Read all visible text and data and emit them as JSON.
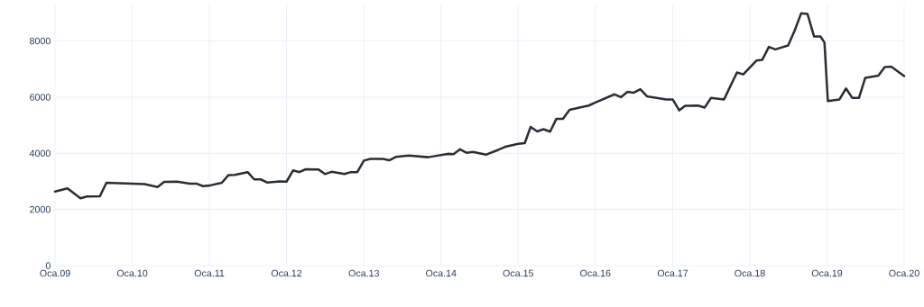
{
  "chart_data": {
    "type": "line",
    "grid": true,
    "line_style": "solid",
    "xlim": [
      "2009-01",
      "2020-01"
    ],
    "ylim": [
      0,
      9300
    ],
    "xticks": [
      {
        "value": "2009-01",
        "label": "Oca.09"
      },
      {
        "value": "2010-01",
        "label": "Oca.10"
      },
      {
        "value": "2011-01",
        "label": "Oca.11"
      },
      {
        "value": "2012-01",
        "label": "Oca.12"
      },
      {
        "value": "2013-01",
        "label": "Oca.13"
      },
      {
        "value": "2014-01",
        "label": "Oca.14"
      },
      {
        "value": "2015-01",
        "label": "Oca.15"
      },
      {
        "value": "2016-01",
        "label": "Oca.16"
      },
      {
        "value": "2017-01",
        "label": "Oca.17"
      },
      {
        "value": "2018-01",
        "label": "Oca.18"
      },
      {
        "value": "2019-01",
        "label": "Oca.19"
      },
      {
        "value": "2020-01",
        "label": "Oca.20"
      }
    ],
    "yticks": [
      0,
      2000,
      4000,
      6000,
      8000
    ],
    "x": [
      "2009-01",
      "2009-03",
      "2009-05",
      "2009-06",
      "2009-08",
      "2009-09",
      "2010-01",
      "2010-03",
      "2010-05",
      "2010-06",
      "2010-08",
      "2010-10",
      "2010-11",
      "2010-12",
      "2011-01",
      "2011-03",
      "2011-04",
      "2011-05",
      "2011-07",
      "2011-08",
      "2011-09",
      "2011-10",
      "2011-12",
      "2012-01",
      "2012-02",
      "2012-03",
      "2012-04",
      "2012-06",
      "2012-07",
      "2012-08",
      "2012-10",
      "2012-11",
      "2012-12",
      "2013-01",
      "2013-02",
      "2013-04",
      "2013-05",
      "2013-06",
      "2013-08",
      "2013-11",
      "2014-02",
      "2014-03",
      "2014-04",
      "2014-05",
      "2014-06",
      "2014-08",
      "2014-10",
      "2014-11",
      "2015-01",
      "2015-02",
      "2015-03",
      "2015-04",
      "2015-05",
      "2015-06",
      "2015-07",
      "2015-08",
      "2015-09",
      "2015-11",
      "2015-12",
      "2016-01",
      "2016-04",
      "2016-05",
      "2016-06",
      "2016-07",
      "2016-08",
      "2016-09",
      "2016-12",
      "2017-01",
      "2017-02",
      "2017-03",
      "2017-05",
      "2017-06",
      "2017-07",
      "2017-09",
      "2017-11",
      "2017-12",
      "2018-02",
      "2018-03",
      "2018-04",
      "2018-05",
      "2018-07",
      "2018-08",
      "2018-09",
      "2018-10",
      "2018-11",
      "2018-12-01",
      "2018-12-20",
      "2019-01-05",
      "2019-03",
      "2019-04",
      "2019-05",
      "2019-06",
      "2019-07",
      "2019-09",
      "2019-10",
      "2019-11",
      "2020-01"
    ],
    "series": [
      {
        "color": "#2a2f36",
        "values": [
          2640,
          2750,
          2400,
          2460,
          2470,
          2950,
          2920,
          2900,
          2800,
          2980,
          2990,
          2920,
          2920,
          2830,
          2850,
          2950,
          3220,
          3230,
          3330,
          3070,
          3070,
          2960,
          3000,
          2990,
          3390,
          3330,
          3430,
          3420,
          3260,
          3340,
          3260,
          3330,
          3330,
          3740,
          3800,
          3800,
          3750,
          3870,
          3920,
          3860,
          3980,
          3970,
          4140,
          4020,
          4050,
          3950,
          4130,
          4230,
          4340,
          4360,
          4940,
          4780,
          4860,
          4770,
          5230,
          5230,
          5550,
          5650,
          5700,
          5810,
          6100,
          6000,
          6190,
          6160,
          6280,
          6030,
          5920,
          5920,
          5530,
          5690,
          5700,
          5630,
          5970,
          5920,
          6880,
          6810,
          7300,
          7330,
          7790,
          7700,
          7840,
          8370,
          8990,
          8960,
          8160,
          8160,
          7950,
          5860,
          5920,
          6310,
          5970,
          5970,
          6690,
          6770,
          7070,
          7090,
          6750
        ]
      }
    ]
  }
}
